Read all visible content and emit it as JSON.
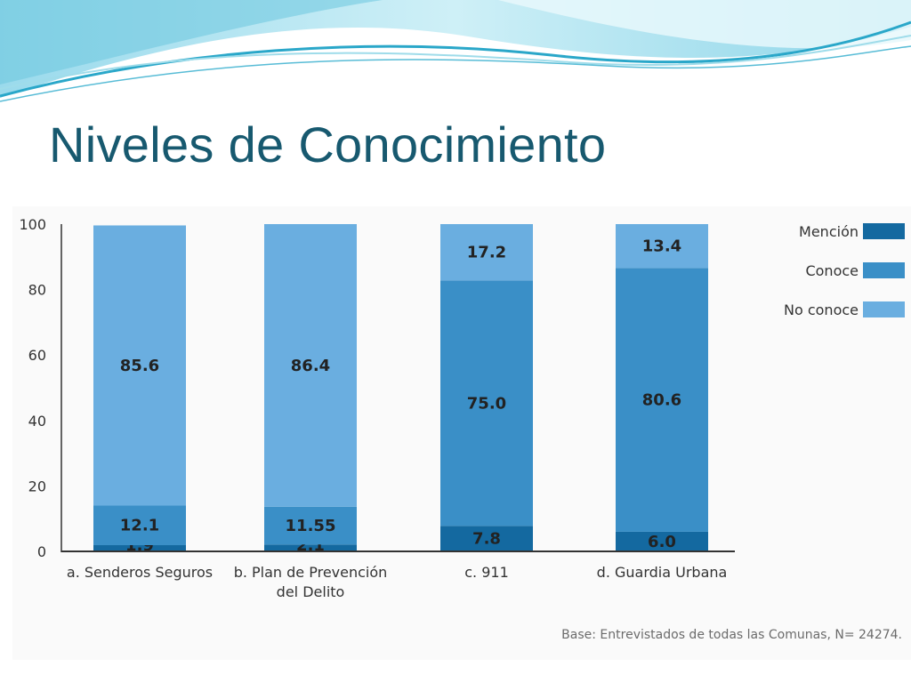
{
  "slide": {
    "title": "Niveles de Conocimiento",
    "base_note": "Base: Entrevistados de todas las Comunas, N= 24274."
  },
  "colors": {
    "title": "#17596f",
    "mencion": "#1469a0",
    "conoce": "#3a8fc7",
    "no_conoce": "#6aaee0",
    "axis": "#333333",
    "wave_dark": "#2aa7c9",
    "wave_light": "#a8e2ee"
  },
  "chart_data": {
    "type": "bar",
    "stacked": true,
    "categories": [
      [
        "a. Senderos Seguros"
      ],
      [
        "b. Plan de Prevención",
        "del Delito"
      ],
      [
        "c. 911"
      ],
      [
        "d. Guardia Urbana"
      ]
    ],
    "series": [
      {
        "name": "Mención",
        "values": [
          1.9,
          2.1,
          7.8,
          6.0
        ],
        "labels": [
          "1.9",
          "2.1",
          "7.8",
          "6.0"
        ]
      },
      {
        "name": "Conoce",
        "values": [
          12.1,
          11.55,
          75.0,
          80.6
        ],
        "labels": [
          "12.1",
          "11.55",
          "75.0",
          "80.6"
        ]
      },
      {
        "name": "No conoce",
        "values": [
          85.6,
          86.4,
          17.2,
          13.4
        ],
        "labels": [
          "85.6",
          "86.4",
          "17.2",
          "13.4"
        ]
      }
    ],
    "ylim": [
      0,
      100
    ],
    "yticks": [
      0,
      20,
      40,
      60,
      80,
      100
    ],
    "grid": false,
    "legend_position": "top-right"
  }
}
